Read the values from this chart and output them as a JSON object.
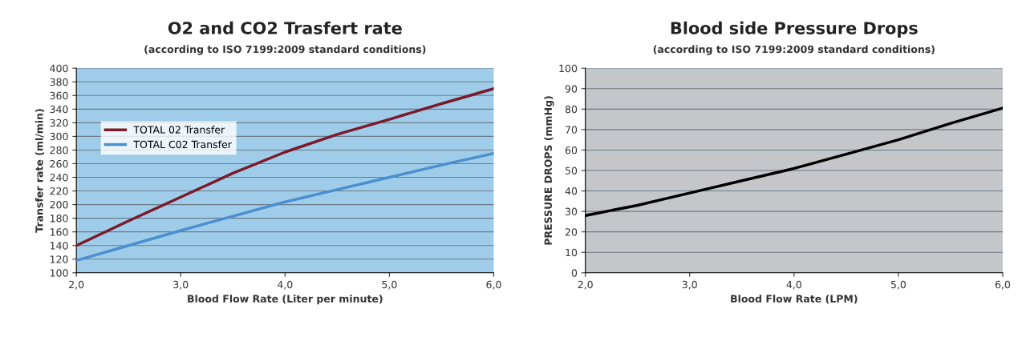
{
  "chart_data": [
    {
      "type": "line",
      "title": "O2 and CO2 Trasfert rate",
      "subtitle": "(according to ISO 7199:2009 standard conditions)",
      "xlabel": "Blood Flow Rate (Liter per minute)",
      "ylabel": "Transfer rate (ml/min)",
      "x": [
        2.0,
        2.5,
        3.0,
        3.5,
        4.0,
        4.5,
        5.0,
        5.5,
        6.0
      ],
      "series": [
        {
          "name": "TOTAL 02 Transfer",
          "color": "#7b1a2a",
          "values": [
            140,
            176,
            211,
            246,
            277,
            303,
            325,
            348,
            370
          ]
        },
        {
          "name": "TOTAL C02 Transfer",
          "color": "#4a8fd0",
          "values": [
            118,
            140,
            162,
            183,
            204,
            222,
            240,
            258,
            275
          ]
        }
      ],
      "xlim": [
        2.0,
        6.0
      ],
      "xticks": [
        {
          "value": 2.0,
          "label": "2,0"
        },
        {
          "value": 3.0,
          "label": "3,0"
        },
        {
          "value": 4.0,
          "label": "4,0"
        },
        {
          "value": 5.0,
          "label": "5,0"
        },
        {
          "value": 6.0,
          "label": "6,0"
        }
      ],
      "ylim": [
        100,
        400
      ],
      "yticks": [
        100,
        120,
        140,
        160,
        180,
        200,
        220,
        240,
        260,
        280,
        300,
        320,
        340,
        360,
        380,
        400
      ],
      "grid": "y",
      "legend": "top left"
    },
    {
      "type": "line",
      "title": "Blood side Pressure Drops",
      "subtitle": "(according to ISO 7199:2009 standard conditions)",
      "xlabel": "Blood Flow Rate (LPM)",
      "ylabel": "PRESSURE DROPS (mmHg)",
      "x": [
        2.0,
        2.5,
        3.0,
        3.5,
        4.0,
        4.5,
        5.0,
        5.5,
        6.0
      ],
      "series": [
        {
          "color": "#000000",
          "values": [
            28,
            33,
            39,
            45,
            51,
            58,
            65,
            73,
            80.5
          ]
        }
      ],
      "xlim": [
        2.0,
        6.0
      ],
      "xticks": [
        {
          "value": 2.0,
          "label": "2,0"
        },
        {
          "value": 3.0,
          "label": "3,0"
        },
        {
          "value": 4.0,
          "label": "4,0"
        },
        {
          "value": 5.0,
          "label": "5,0"
        },
        {
          "value": 6.0,
          "label": "6,0"
        }
      ],
      "ylim": [
        0,
        100
      ],
      "yticks": [
        0,
        10,
        20,
        30,
        40,
        50,
        60,
        70,
        80,
        90,
        100
      ],
      "grid": "y"
    }
  ]
}
